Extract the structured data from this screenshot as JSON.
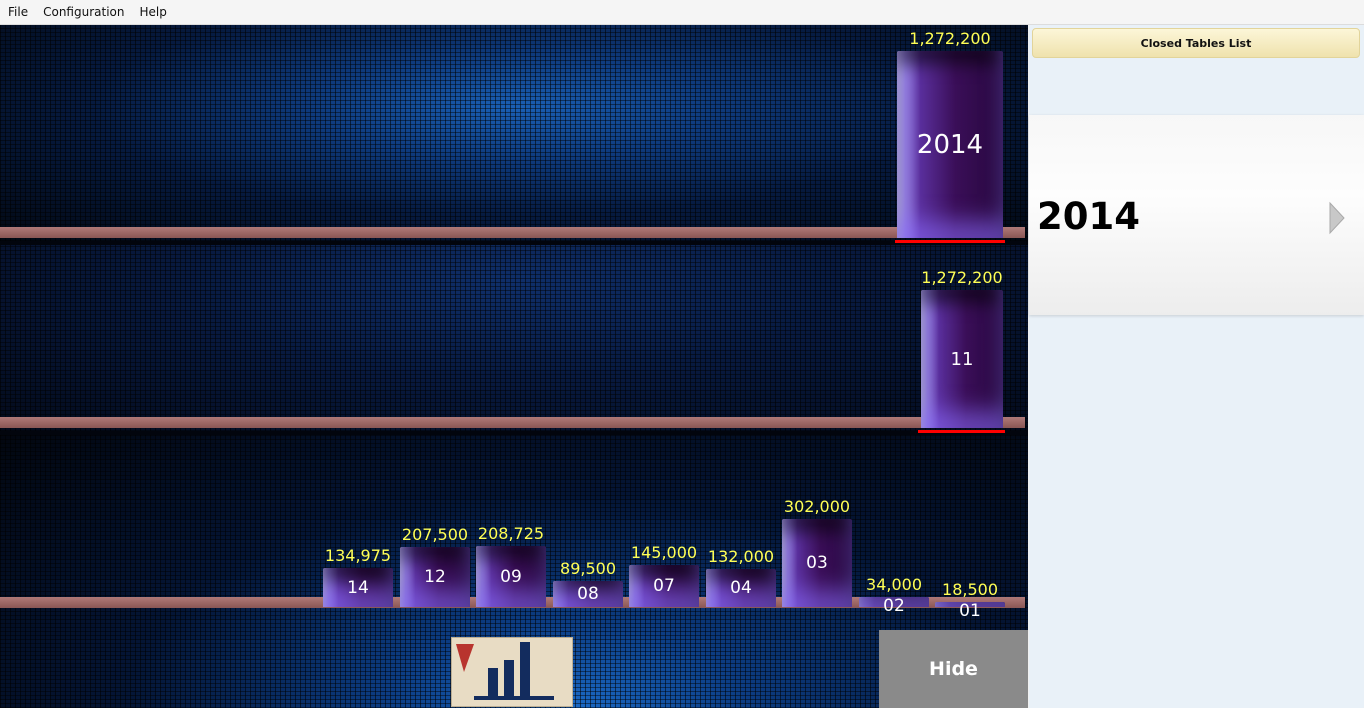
{
  "menu": [
    "File",
    "Configuration",
    "Help"
  ],
  "side": {
    "header": "Closed Tables List",
    "year": "2014"
  },
  "hide_label": "Hide",
  "rows": {
    "year": {
      "labels": [
        "2014"
      ],
      "values": [
        1272200
      ],
      "value_labels": [
        "1,272,200"
      ]
    },
    "month": {
      "labels": [
        "11"
      ],
      "values": [
        1272200
      ],
      "value_labels": [
        "1,272,200"
      ]
    },
    "day": {
      "labels": [
        "14",
        "12",
        "09",
        "08",
        "07",
        "04",
        "03",
        "02",
        "01"
      ],
      "values": [
        134975,
        207500,
        208725,
        89500,
        145000,
        132000,
        302000,
        34000,
        18500
      ],
      "value_labels": [
        "134,975",
        "207,500",
        "208,725",
        "89,500",
        "145,000",
        "132,000",
        "302,000",
        "34,000",
        "18,500"
      ]
    }
  },
  "colors": {
    "value_label": "#ffff55",
    "selected_underline": "#ff0000",
    "shelf": "#9b6664"
  }
}
